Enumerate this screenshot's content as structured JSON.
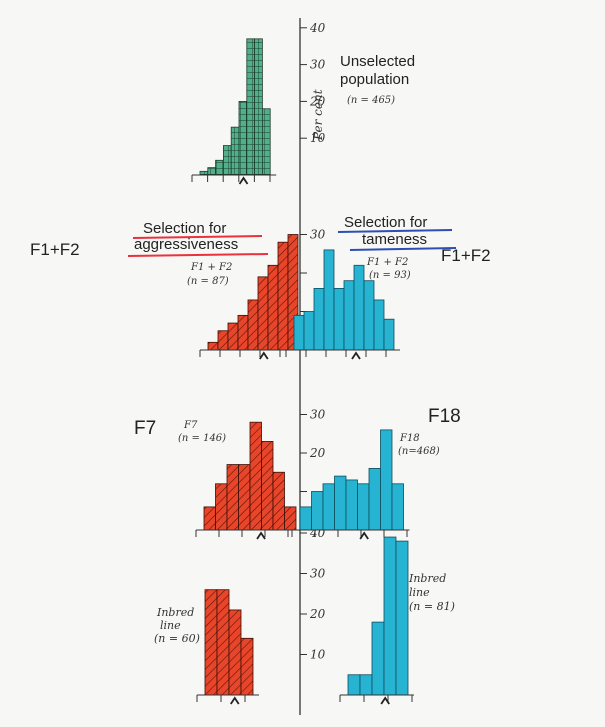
{
  "chart_data": [
    {
      "type": "bar",
      "panel": "unselected",
      "series": [
        {
          "name": "Unselected population",
          "n_label": "(n = 465)",
          "values": [
            1,
            2,
            4,
            8,
            13,
            20,
            37,
            37,
            18
          ]
        }
      ],
      "ylim": [
        0,
        40
      ],
      "y_ticks": [
        10,
        20,
        30,
        40
      ],
      "ylabel": "Per cent"
    },
    {
      "type": "bar",
      "panel": "F1+F2",
      "series": [
        {
          "name": "Selection for aggressiveness",
          "line_label": "F1 + F2",
          "n_label": "(n = 87)",
          "values": [
            2,
            5,
            7,
            9,
            13,
            19,
            22,
            28,
            30
          ]
        },
        {
          "name": "Selection for tameness",
          "line_label": "F1 + F2",
          "n_label": "(n = 93)",
          "values": [
            9,
            10,
            16,
            26,
            16,
            18,
            22,
            18,
            13,
            8
          ]
        }
      ],
      "ylim": [
        0,
        30
      ],
      "y_ticks": [
        30
      ]
    },
    {
      "type": "bar",
      "panel": "F7/F18",
      "series": [
        {
          "name": "F7",
          "line_label": "F7",
          "n_label": "(n = 146)",
          "values": [
            6,
            12,
            17,
            17,
            28,
            23,
            15,
            6
          ]
        },
        {
          "name": "F18",
          "line_label": "F18",
          "n_label": "(n=468)",
          "values": [
            6,
            10,
            12,
            14,
            13,
            12,
            16,
            26,
            12
          ]
        }
      ],
      "ylim": [
        0,
        30
      ],
      "y_ticks": [
        20,
        30
      ]
    },
    {
      "type": "bar",
      "panel": "inbred",
      "series": [
        {
          "name": "Inbred line",
          "line_label": "Inbred line",
          "n_label": "(n = 60)",
          "values": [
            26,
            26,
            21,
            14
          ]
        },
        {
          "name": "Inbred line",
          "line_label": "Inbred line",
          "n_label": "(n = 81)",
          "values": [
            5,
            5,
            18,
            39,
            38
          ]
        }
      ],
      "ylim": [
        0,
        40
      ],
      "y_ticks": [
        10,
        20,
        30,
        40
      ]
    }
  ],
  "annotations": {
    "unselected_title_1": "Unselected",
    "unselected_title_2": "population",
    "left_generation": "F1+F2",
    "right_generation": "F1+F2",
    "agg_title_1": "Selection for",
    "agg_title_2": "aggressiveness",
    "tame_title_1": "Selection for",
    "tame_title_2": "tameness",
    "f7_big": "F7",
    "f18_big": "F18"
  },
  "colors": {
    "unselected": "#4fb089",
    "aggressive": "#e8452a",
    "tame": "#27b4d3",
    "underline_red": "#e8323c",
    "underline_blue": "#2b4fb5"
  }
}
